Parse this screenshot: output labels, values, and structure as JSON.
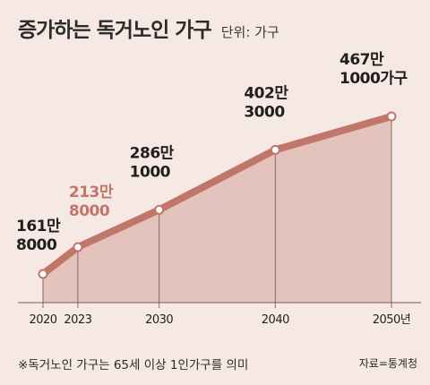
{
  "title": "증가하는 독거노인 가구",
  "unit_label": "단위: 가구",
  "note": "※독거노인 가구는 65세 이상 1인가구를 의미",
  "source": "자료=통계청",
  "colors": {
    "background": "#f6e9e3",
    "line": "#c07668",
    "area": "#e3c3bc",
    "highlight_label": "#c07668",
    "label": "#1f1f1f"
  },
  "chart_data": {
    "type": "area",
    "x": [
      2020,
      2023,
      2030,
      2040,
      2050
    ],
    "values": [
      1618000,
      2138000,
      2861000,
      4023000,
      4671000
    ],
    "x_tick_labels": [
      "2020",
      "2023",
      "2030",
      "2040",
      "2050년"
    ],
    "data_labels": [
      [
        "161만",
        "8000"
      ],
      [
        "213만",
        "8000"
      ],
      [
        "286만",
        "1000"
      ],
      [
        "402만",
        "3000"
      ],
      [
        "467만",
        "1000가구"
      ]
    ],
    "highlight_index": 1,
    "xlabel": "",
    "ylabel": "",
    "grid": false,
    "legend": "none"
  }
}
